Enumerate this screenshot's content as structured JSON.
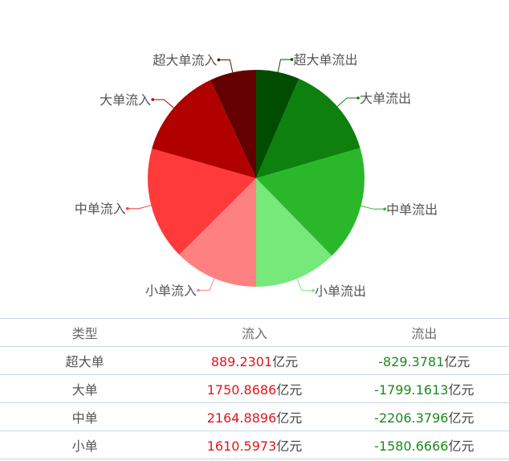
{
  "chart_data": {
    "type": "pie",
    "slices": [
      {
        "label": "超大单流出",
        "value": 829.3781,
        "color": "#004d00"
      },
      {
        "label": "大单流出",
        "value": 1799.1613,
        "color": "#0d800d"
      },
      {
        "label": "中单流出",
        "value": 2206.3796,
        "color": "#2ab82a"
      },
      {
        "label": "小单流出",
        "value": 1580.6666,
        "color": "#77e87a"
      },
      {
        "label": "小单流入",
        "value": 1610.5973,
        "color": "#ff8080"
      },
      {
        "label": "中单流入",
        "value": 2164.8896,
        "color": "#ff3a3a"
      },
      {
        "label": "大单流入",
        "value": 1750.8686,
        "color": "#b00000"
      },
      {
        "label": "超大单流入",
        "value": 889.2301,
        "color": "#640000"
      }
    ]
  },
  "table": {
    "headers": {
      "type": "类型",
      "inflow": "流入",
      "outflow": "流出"
    },
    "unit": "亿元",
    "rows": [
      {
        "type": "超大单",
        "inflow": "889.2301",
        "outflow": "-829.3781"
      },
      {
        "type": "大单",
        "inflow": "1750.8686",
        "outflow": "-1799.1613"
      },
      {
        "type": "中单",
        "inflow": "2164.8896",
        "outflow": "-2206.3796"
      },
      {
        "type": "小单",
        "inflow": "1610.5973",
        "outflow": "-1580.6666"
      }
    ]
  }
}
